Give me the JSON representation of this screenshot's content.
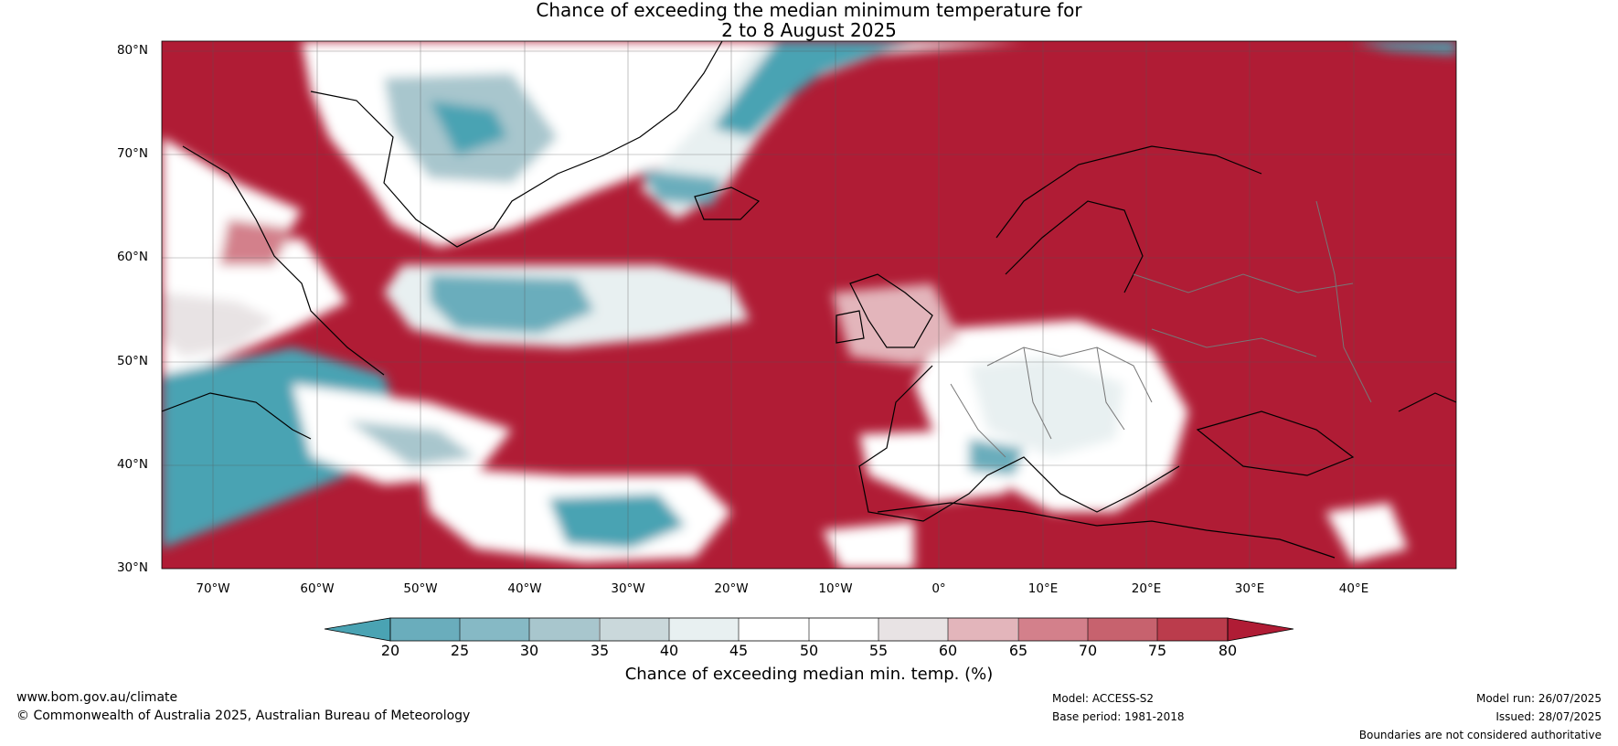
{
  "title": {
    "line1": "Chance of exceeding the median minimum temperature for",
    "line2": "2 to 8 August 2025"
  },
  "axes": {
    "lat_labels": [
      "80°N",
      "70°N",
      "60°N",
      "50°N",
      "40°N",
      "30°N"
    ],
    "lon_labels": [
      "70°W",
      "60°W",
      "50°W",
      "40°W",
      "30°W",
      "20°W",
      "10°W",
      "0°",
      "10°E",
      "20°E",
      "30°E",
      "40°E"
    ],
    "lat_range": [
      30,
      80
    ],
    "lon_range": [
      -75,
      50
    ]
  },
  "colorbar": {
    "ticks": [
      "20",
      "25",
      "30",
      "35",
      "40",
      "45",
      "50",
      "55",
      "60",
      "65",
      "70",
      "75",
      "80"
    ],
    "title": "Chance of exceeding median min. temp. (%)",
    "colors": [
      "#4aa3b3",
      "#6aadbc",
      "#86b9c5",
      "#a8c6cd",
      "#cad8db",
      "#e8f0f1",
      "#ffffff",
      "#ffffff",
      "#e8e3e4",
      "#e3b5bb",
      "#d3808b",
      "#c7626e",
      "#bb3c4c",
      "#b01c35"
    ]
  },
  "footer": {
    "site": "www.bom.gov.au/climate",
    "copyright": "© Commonwealth of Australia 2025, Australian Bureau of Meteorology",
    "model": "Model: ACCESS-S2",
    "base_period": "Base period: 1981-2018",
    "model_run": "Model run: 26/07/2025",
    "issued": "Issued: 28/07/2025",
    "disclaimer": "Boundaries are not considered authoritative"
  }
}
